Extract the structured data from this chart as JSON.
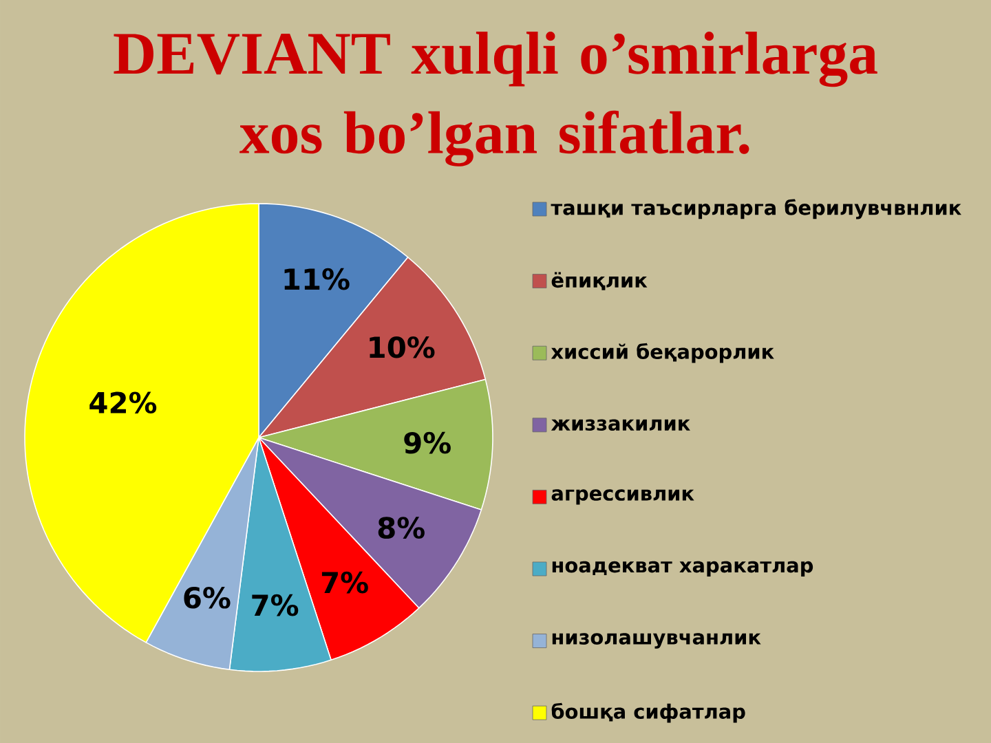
{
  "chart_data": {
    "type": "pie",
    "title": "DEVIANT xulqli o’smirlarga xos bo’lgan sifatlar.",
    "categories": [
      "ташқи таъсирларга берилувчвнлик",
      "ёпиқлик",
      "хиссий беқарорлик",
      "жиззакилик",
      "агрессивлик",
      "ноадекват харакатлар",
      "низолашувчанлик",
      "бошқа сифатлар"
    ],
    "values": [
      11,
      10,
      9,
      8,
      7,
      7,
      6,
      42
    ],
    "colors": [
      "#4f81bd",
      "#c0504d",
      "#9bbb59",
      "#8064a2",
      "#ff0000",
      "#4bacc6",
      "#95b3d7",
      "#ffff00"
    ],
    "value_labels": [
      "11%",
      "10%",
      "9%",
      "8%",
      "7%",
      "7%",
      "6%",
      "42%"
    ],
    "legend": "right"
  }
}
